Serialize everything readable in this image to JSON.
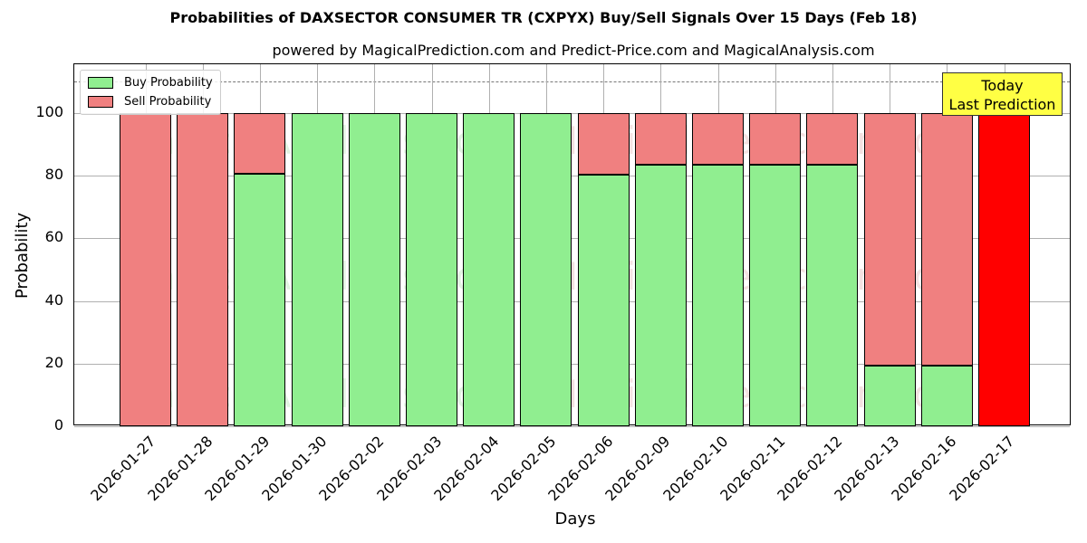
{
  "chart_data": {
    "type": "bar",
    "stacked": true,
    "title": "Probabilities of DAXSECTOR CONSUMER TR (CXPYX) Buy/Sell Signals Over 15 Days (Feb 18)",
    "subtitle": "powered by MagicalPrediction.com and Predict-Price.com and MagicalAnalysis.com",
    "xlabel": "Days",
    "ylabel": "Probability",
    "ylim": [
      0,
      115
    ],
    "yticks": [
      0,
      20,
      40,
      60,
      80,
      100
    ],
    "grid": true,
    "legend_position": "upper left",
    "categories": [
      "2026-01-27",
      "2026-01-28",
      "2026-01-29",
      "2026-01-30",
      "2026-02-02",
      "2026-02-03",
      "2026-02-04",
      "2026-02-05",
      "2026-02-06",
      "2026-02-09",
      "2026-02-10",
      "2026-02-11",
      "2026-02-12",
      "2026-02-13",
      "2026-02-16",
      "2026-02-17"
    ],
    "series": [
      {
        "name": "Buy Probability",
        "color": "#90ee90",
        "values": [
          0,
          0,
          80.6,
          100,
          100,
          100,
          100,
          100,
          80.3,
          83.5,
          83.5,
          83.5,
          83.5,
          19.4,
          19.4,
          0
        ]
      },
      {
        "name": "Sell Probability",
        "color": "#f08080",
        "values": [
          100,
          100,
          19.4,
          0,
          0,
          0,
          0,
          0,
          19.7,
          16.5,
          16.5,
          16.5,
          16.5,
          80.6,
          80.6,
          100
        ]
      }
    ],
    "highlight": {
      "category": "2026-02-17",
      "color": "#ff0000"
    },
    "reference_line": {
      "y": 110,
      "style": "dashed"
    },
    "annotation": {
      "text_line1": "Today",
      "text_line2": "Last Prediction"
    },
    "watermarks": [
      "MagicalAnalysis.com",
      "MagicalPrediction.com"
    ]
  }
}
